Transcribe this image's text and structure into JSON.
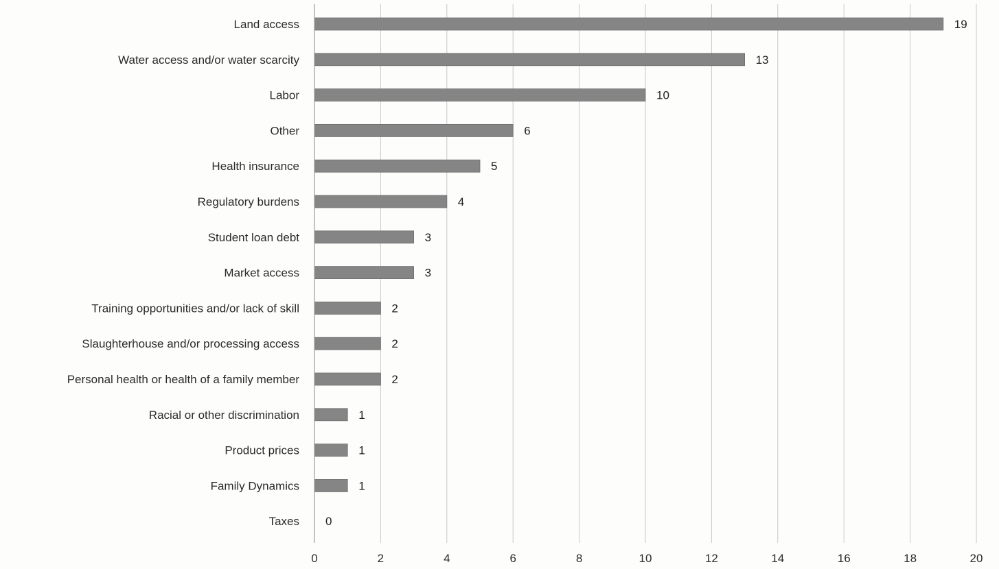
{
  "chart_data": {
    "type": "bar",
    "orientation": "horizontal",
    "categories": [
      "Land access",
      "Water access and/or water scarcity",
      "Labor",
      "Other",
      "Health insurance",
      "Regulatory burdens",
      "Student loan debt",
      "Market access",
      "Training opportunities and/or lack of skill",
      "Slaughterhouse and/or processing access",
      "Personal health or health of a family member",
      "Racial or other discrimination",
      "Product prices",
      "Family Dynamics",
      "Taxes"
    ],
    "values": [
      19,
      13,
      10,
      6,
      5,
      4,
      3,
      3,
      2,
      2,
      2,
      1,
      1,
      1,
      0
    ],
    "xlim": [
      0,
      20
    ],
    "x_ticks": [
      "0",
      "2",
      "4",
      "6",
      "8",
      "10",
      "12",
      "14",
      "16",
      "18",
      "20"
    ],
    "grid": true,
    "bar_color": "#858585",
    "title": "",
    "xlabel": "",
    "ylabel": ""
  }
}
